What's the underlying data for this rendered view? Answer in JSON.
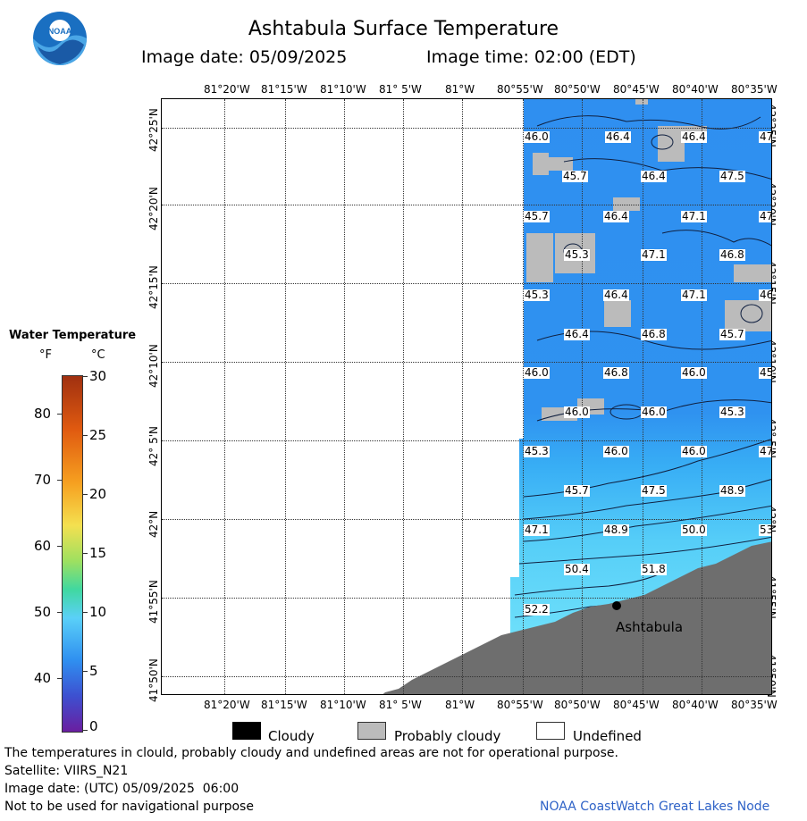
{
  "header": {
    "title": "Ashtabula Surface Temperature",
    "image_date": "Image date: 05/09/2025",
    "image_time": "Image time: 02:00 (EDT)"
  },
  "logo": {
    "text": "NOAA"
  },
  "map": {
    "lon_labels": [
      "81°20'W",
      "81°15'W",
      "81°10'W",
      "81° 5'W",
      "81°W",
      "80°55'W",
      "80°50'W",
      "80°45'W",
      "80°40'W",
      "80°35'W"
    ],
    "lat_labels": [
      "42°25'N",
      "42°20'N",
      "42°15'N",
      "42°10'N",
      "42° 5'N",
      "42°N",
      "41°55'N",
      "41°50'N"
    ],
    "city_name": "Ashtabula",
    "temperature_labels": [
      "46.0",
      "46.4",
      "46.4",
      "47",
      "45.7",
      "46.4",
      "47.5",
      "45.7",
      "46.4",
      "47.1",
      "47",
      "45.3",
      "47.1",
      "46.8",
      "45.3",
      "46.4",
      "47.1",
      "46",
      "46.4",
      "46.8",
      "45.7",
      "46.0",
      "46.8",
      "46.0",
      "45",
      "46.0",
      "46.0",
      "45.3",
      "45.3",
      "46.0",
      "46.0",
      "47",
      "45.7",
      "47.5",
      "48.9",
      "47.1",
      "48.9",
      "50.0",
      "53",
      "50.4",
      "51.8",
      "52.2"
    ]
  },
  "color_legend": {
    "title": "Water Temperature",
    "unit_f": "°F",
    "unit_c": "°C",
    "f_ticks": [
      "80",
      "70",
      "60",
      "50",
      "40"
    ],
    "c_ticks": [
      "30",
      "25",
      "20",
      "15",
      "10",
      "5",
      "0"
    ]
  },
  "bottom_legend": {
    "cloudy": "Cloudy",
    "probably_cloudy": "Probably cloudy",
    "undefined": "Undefined"
  },
  "footer": {
    "disclaimer": "The temperatures in clould, probably cloudy and undefined areas are not for operational purpose.",
    "satellite": "Satellite: VIIRS_N21",
    "utc_date": "Image date: (UTC) 05/09/2025  06:00",
    "nav_warning": "Not to be used for navigational purpose",
    "credit": "NOAA CoastWatch Great Lakes Node"
  },
  "colors": {
    "land": "#6e6e6e",
    "water_deep": "#2f8ff0",
    "water_mid": "#38a8f5",
    "water_warm": "#5ad0f8",
    "cloud": "#bbbbbb"
  }
}
